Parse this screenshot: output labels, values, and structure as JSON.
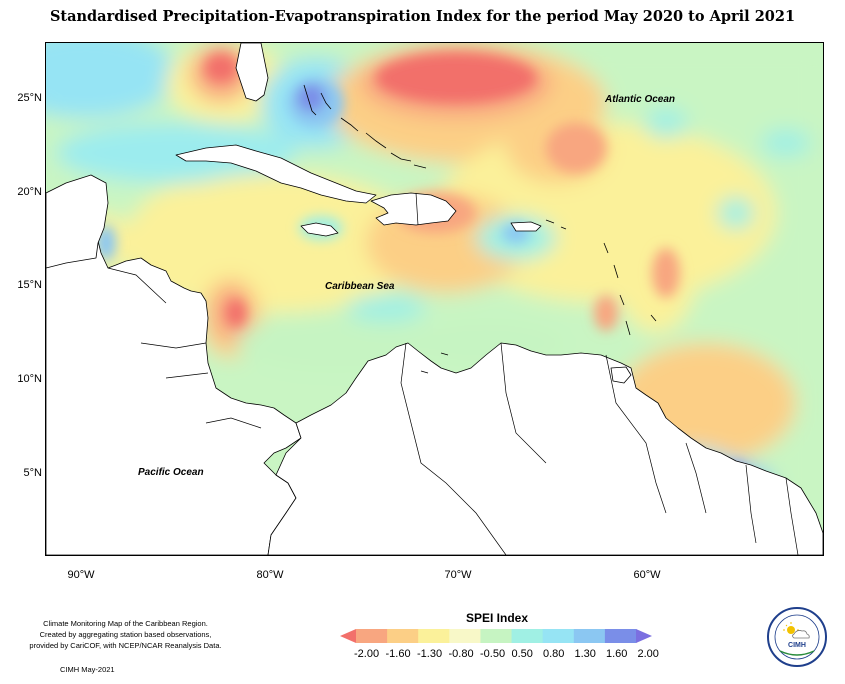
{
  "title": "Standardised Precipitation-Evapotranspiration Index for the period May 2020 to April 2021",
  "map": {
    "lat_labels": [
      "25°N",
      "20°N",
      "15°N",
      "10°N",
      "5°N"
    ],
    "lon_labels": [
      "90°W",
      "80°W",
      "70°W",
      "60°W"
    ],
    "regions": {
      "atlantic": "Atlantic Ocean",
      "caribbean": "Caribbean Sea",
      "pacific": "Pacific Ocean"
    }
  },
  "legend": {
    "title": "SPEI Index",
    "ticks": [
      "-2.00",
      "-1.60",
      "-1.30",
      "-0.80",
      "-0.50",
      "0.50",
      "0.80",
      "1.30",
      "1.60",
      "2.00"
    ],
    "colors": [
      "#f2706b",
      "#f8a680",
      "#fccf86",
      "#fbf19a",
      "#f8f8c8",
      "#c6f4c2",
      "#a0f0e4",
      "#96e4f4",
      "#8bc7f2",
      "#7a8ee8",
      "#7b6fe0"
    ]
  },
  "credit": {
    "lines": [
      "Climate Monitoring Map of the Caribbean Region.",
      "Created by aggregating station based observations,",
      "provided by CariCOF, with NCEP/NCAR Reanalysis Data."
    ],
    "date": "CIMH May-2021"
  },
  "logo": {
    "text": "CIMH"
  }
}
